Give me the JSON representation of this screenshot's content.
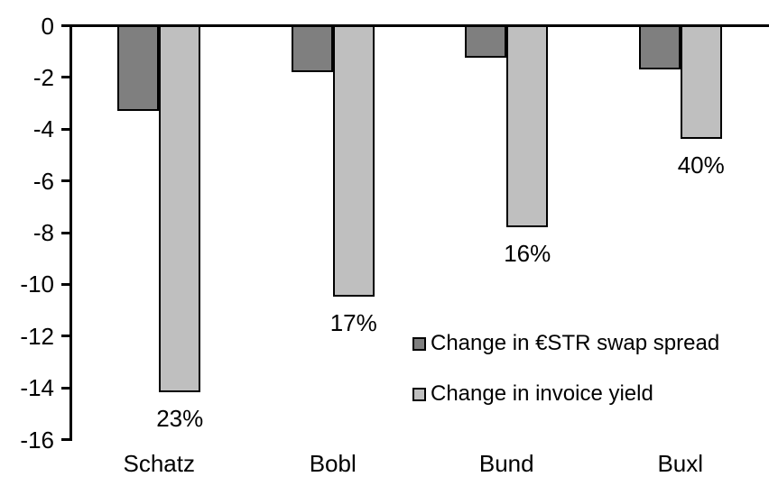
{
  "chart_data": {
    "type": "bar",
    "orientation": "vertical",
    "title": "",
    "xlabel": "",
    "ylabel": "",
    "categories": [
      "Schatz",
      "Bobl",
      "Bund",
      "Buxl"
    ],
    "series": [
      {
        "name": "Change in €STR swap spread",
        "color": "#7f7f7f",
        "values": [
          -3.3,
          -1.8,
          -1.25,
          -1.7
        ]
      },
      {
        "name": "Change in invoice yield",
        "color": "#bfbfbf",
        "values": [
          -14.2,
          -10.5,
          -7.8,
          -4.4
        ],
        "point_labels": [
          "23%",
          "17%",
          "16%",
          "40%"
        ]
      }
    ],
    "ylim": [
      -16,
      0
    ],
    "yticks": [
      0,
      -2,
      -4,
      -6,
      -8,
      -10,
      -12,
      -14,
      -16
    ],
    "grid": false,
    "legend_position": "inside-right",
    "axis_color": "#000000",
    "bar_border_color": "#000000",
    "text_color": "#000000",
    "background_color": "#ffffff"
  }
}
